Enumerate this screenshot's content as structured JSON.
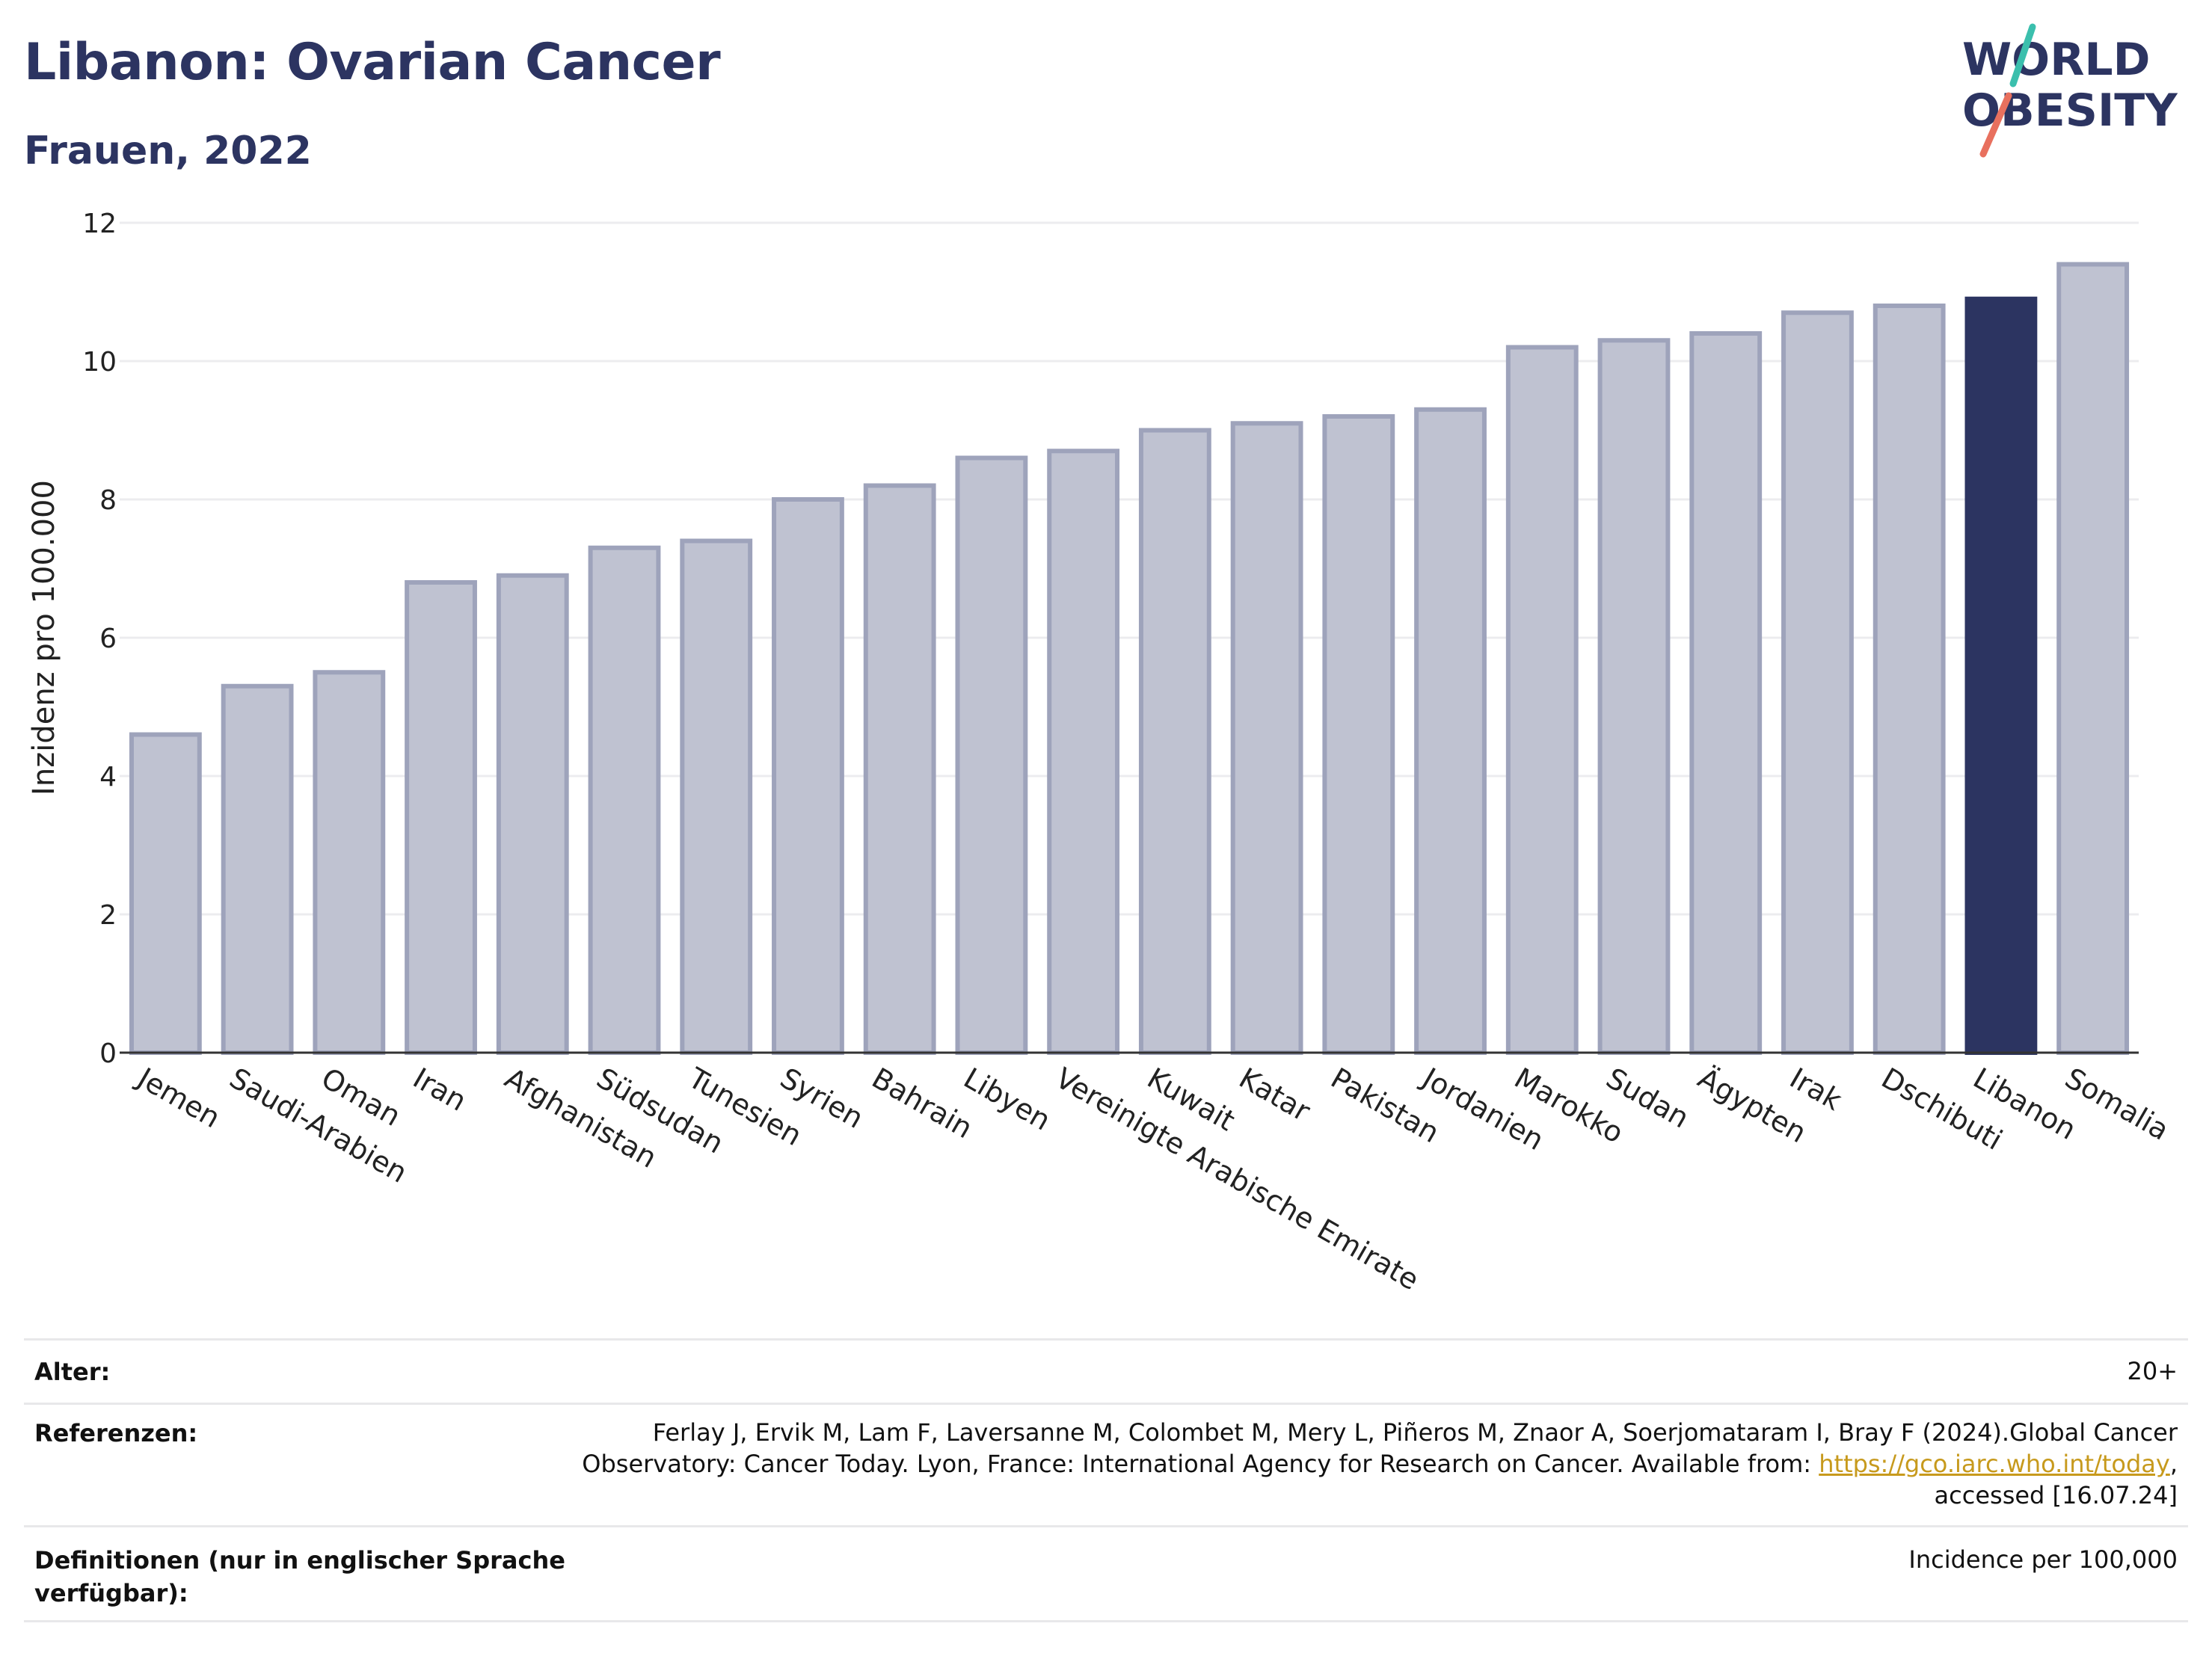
{
  "header": {
    "title": "Libanon: Ovarian Cancer",
    "subtitle": "Frauen, 2022"
  },
  "logo": {
    "line1": "WORLD",
    "line2": "OBESITY",
    "colors": {
      "text": "#2c3461",
      "slash_top": "#3bbfad",
      "slash_bottom": "#e8705e"
    }
  },
  "colors": {
    "bar": "#bfc2d1",
    "bar_stroke": "#9ea3bb",
    "highlight": "#2c3461",
    "axis": "#333333",
    "grid": "#ececef"
  },
  "chart_data": {
    "type": "bar",
    "ylabel": "Inzidenz pro 100.000",
    "ylim": [
      0,
      12
    ],
    "yticks": [
      0,
      2,
      4,
      6,
      8,
      10,
      12
    ],
    "grid": true,
    "highlight": "Libanon",
    "categories": [
      "Jemen",
      "Saudi-Arabien",
      "Oman",
      "Iran",
      "Afghanistan",
      "Südsudan",
      "Tunesien",
      "Syrien",
      "Bahrain",
      "Libyen",
      "Vereinigte Arabische Emirate",
      "Kuwait",
      "Katar",
      "Pakistan",
      "Jordanien",
      "Marokko",
      "Sudan",
      "Ägypten",
      "Irak",
      "Dschibuti",
      "Libanon",
      "Somalia"
    ],
    "values": [
      4.6,
      5.3,
      5.5,
      6.8,
      6.9,
      7.3,
      7.4,
      8.0,
      8.2,
      8.6,
      8.7,
      9.0,
      9.1,
      9.2,
      9.3,
      10.2,
      10.3,
      10.4,
      10.7,
      10.8,
      10.9,
      11.4
    ]
  },
  "meta": {
    "age_label": "Alter:",
    "age_value": "20+",
    "ref_label": "Referenzen:",
    "ref_line1": "Ferlay J, Ervik M, Lam F, Laversanne M, Colombet M, Mery L, Piñeros M, Znaor A, Soerjomataram I, Bray F (2024).Global Cancer",
    "ref_line2_pre": "Observatory: Cancer Today. Lyon, France: International Agency for Research on Cancer. Available from: ",
    "ref_link": "https://gco.iarc.who.int/today",
    "ref_line2_post": ",",
    "ref_line3": "accessed [16.07.24]",
    "def_label_1": "Definitionen (nur in englischer Sprache",
    "def_label_2": "verfügbar):",
    "def_value": "Incidence per 100,000"
  }
}
